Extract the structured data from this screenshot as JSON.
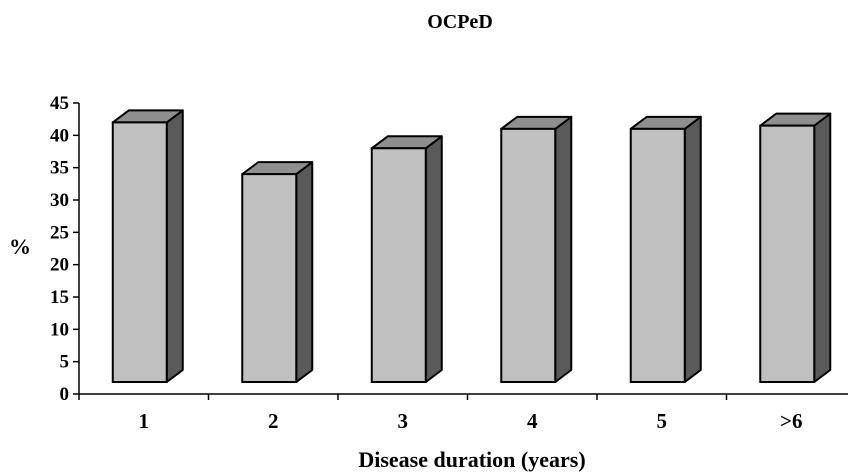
{
  "chart_data": {
    "type": "bar",
    "title": "OCPeD",
    "xlabel": "Disease duration (years)",
    "ylabel": "%",
    "categories": [
      "1",
      "2",
      "3",
      "4",
      "5",
      ">6"
    ],
    "values": [
      42,
      34,
      38,
      41,
      41,
      41.5
    ],
    "ylim": [
      0,
      45
    ],
    "yticks": [
      0,
      5,
      10,
      15,
      20,
      25,
      30,
      35,
      40,
      45
    ],
    "grid": false,
    "legend": "none",
    "style": "3d-bar",
    "colors": {
      "front": "#c0c0c0",
      "side": "#5a5a5a",
      "top": "#8f8f8f",
      "outline": "#000000"
    }
  }
}
